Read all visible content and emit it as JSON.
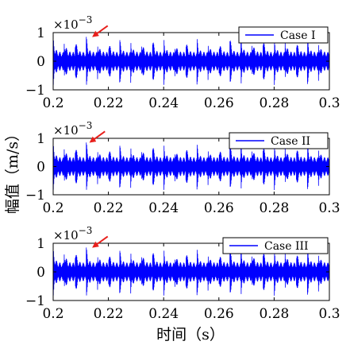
{
  "colors": {
    "signal": "#0000ff",
    "arrow": "#e8201c",
    "axis": "#000000",
    "background": "#ffffff"
  },
  "xlabel": "时间（s）",
  "ylabel": "幅值（m/s）",
  "chart_data": [
    {
      "type": "line",
      "legend": "Case I",
      "legend_position": "top-right",
      "xlim": [
        0.2,
        0.3
      ],
      "ylim": [
        -1,
        1
      ],
      "y_multiplier": "×10^-3",
      "x_ticks": [
        "0.2",
        "0.22",
        "0.24",
        "0.26",
        "0.28",
        "0.3"
      ],
      "y_ticks": [
        "1",
        "0",
        "-1"
      ],
      "signal": {
        "impulse_period": 0.004,
        "amplitude_peak": 0.9,
        "amplitude_base": 0.32
      },
      "annotation": {
        "type": "arrow",
        "points_to_x": 0.214,
        "points_to_y": 0.85
      }
    },
    {
      "type": "line",
      "legend": "Case II",
      "legend_position": "top-right",
      "xlim": [
        0.2,
        0.3
      ],
      "ylim": [
        -1,
        1
      ],
      "y_multiplier": "×10^-3",
      "x_ticks": [
        "0.2",
        "0.22",
        "0.24",
        "0.26",
        "0.28",
        "0.3"
      ],
      "y_ticks": [
        "1",
        "0",
        "-1"
      ],
      "signal": {
        "impulse_period": 0.004,
        "amplitude_peak": 0.9,
        "amplitude_base": 0.32
      },
      "annotation": {
        "type": "arrow",
        "points_to_x": 0.213,
        "points_to_y": 0.85
      }
    },
    {
      "type": "line",
      "legend": "Case III",
      "legend_position": "top-right",
      "xlim": [
        0.2,
        0.3
      ],
      "ylim": [
        -1,
        1
      ],
      "y_multiplier": "×10^-3",
      "x_ticks": [
        "0.2",
        "0.22",
        "0.24",
        "0.26",
        "0.28",
        "0.3"
      ],
      "y_ticks": [
        "1",
        "0",
        "-1"
      ],
      "signal": {
        "impulse_period": 0.004,
        "amplitude_peak": 0.9,
        "amplitude_base": 0.32
      },
      "annotation": {
        "type": "arrow",
        "points_to_x": 0.214,
        "points_to_y": 0.85
      }
    }
  ]
}
